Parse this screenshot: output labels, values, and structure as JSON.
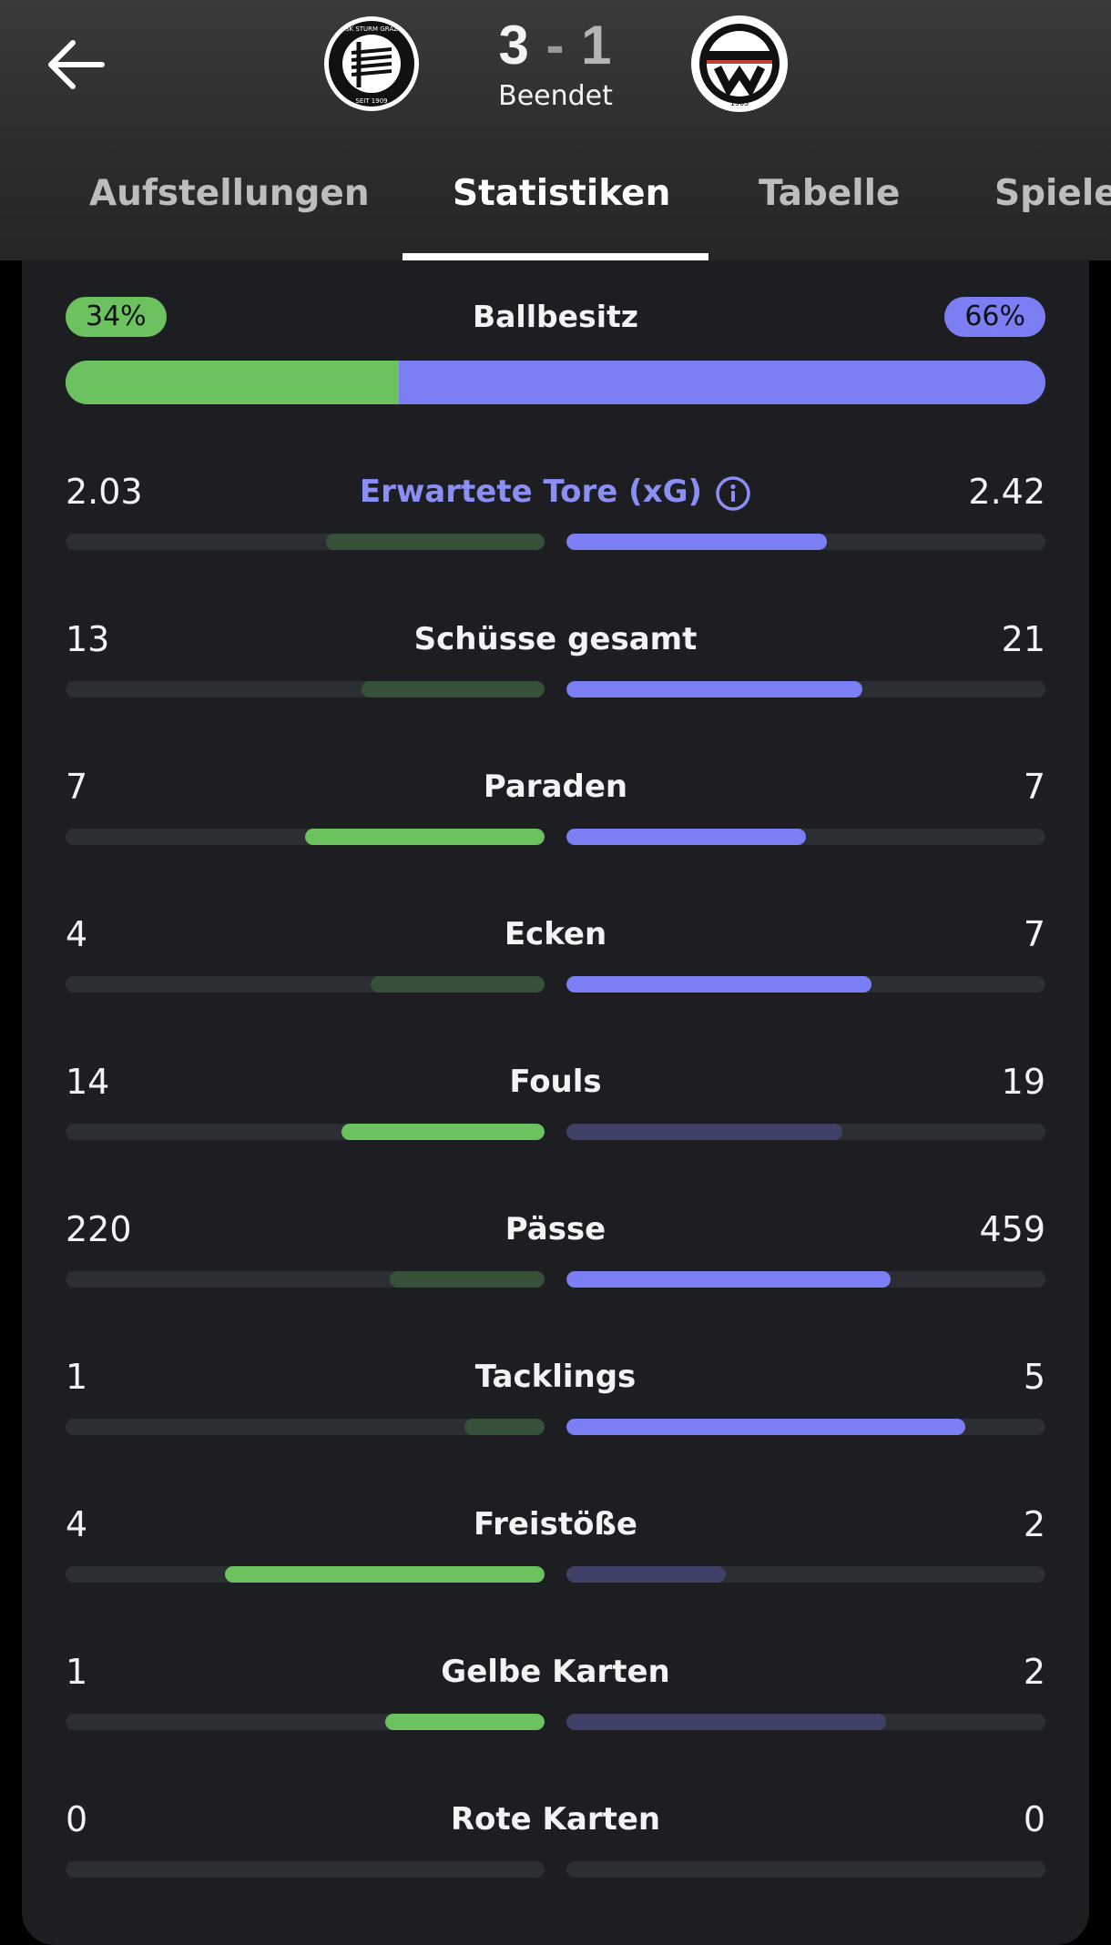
{
  "match": {
    "home_score": "3",
    "separator": "-",
    "away_score": "1",
    "status": "Beendet",
    "home_logo_text": "SK STURM GRAZ · SEIT 1909",
    "away_logo_text": "1905"
  },
  "tabs": [
    {
      "label": "Aufstellungen",
      "active": false
    },
    {
      "label": "Statistiken",
      "active": true
    },
    {
      "label": "Tabelle",
      "active": false
    },
    {
      "label": "Spiele",
      "active": false
    }
  ],
  "colors": {
    "home_accent": "#6cc25f",
    "away_accent": "#7b7ff3",
    "home_muted": "#37503a",
    "away_muted": "#3f4266",
    "track": "#2b2e33"
  },
  "possession": {
    "label": "Ballbesitz",
    "home": "34%",
    "away": "66%",
    "home_fraction": 0.34
  },
  "stats": [
    {
      "label": "Erwartete Tore (xG)",
      "home": "2.03",
      "away": "2.42",
      "home_fill": 0.456,
      "away_fill": 0.544,
      "home_lead": false,
      "away_lead": true,
      "accent_label": true,
      "info_icon": "info-icon"
    },
    {
      "label": "Schüsse gesamt",
      "home": "13",
      "away": "21",
      "home_fill": 0.382,
      "away_fill": 0.618,
      "home_lead": false,
      "away_lead": true
    },
    {
      "label": "Paraden",
      "home": "7",
      "away": "7",
      "home_fill": 0.5,
      "away_fill": 0.5,
      "home_lead": true,
      "away_lead": true
    },
    {
      "label": "Ecken",
      "home": "4",
      "away": "7",
      "home_fill": 0.364,
      "away_fill": 0.636,
      "home_lead": false,
      "away_lead": true
    },
    {
      "label": "Fouls",
      "home": "14",
      "away": "19",
      "home_fill": 0.424,
      "away_fill": 0.576,
      "home_lead": true,
      "away_lead": false
    },
    {
      "label": "Pässe",
      "home": "220",
      "away": "459",
      "home_fill": 0.324,
      "away_fill": 0.676,
      "home_lead": false,
      "away_lead": true
    },
    {
      "label": "Tacklings",
      "home": "1",
      "away": "5",
      "home_fill": 0.167,
      "away_fill": 0.833,
      "home_lead": false,
      "away_lead": true
    },
    {
      "label": "Freistöße",
      "home": "4",
      "away": "2",
      "home_fill": 0.667,
      "away_fill": 0.333,
      "home_lead": true,
      "away_lead": false
    },
    {
      "label": "Gelbe Karten",
      "home": "1",
      "away": "2",
      "home_fill": 0.333,
      "away_fill": 0.667,
      "home_lead": true,
      "away_lead": false
    },
    {
      "label": "Rote Karten",
      "home": "0",
      "away": "0",
      "home_fill": 0,
      "away_fill": 0,
      "home_lead": false,
      "away_lead": false
    }
  ]
}
